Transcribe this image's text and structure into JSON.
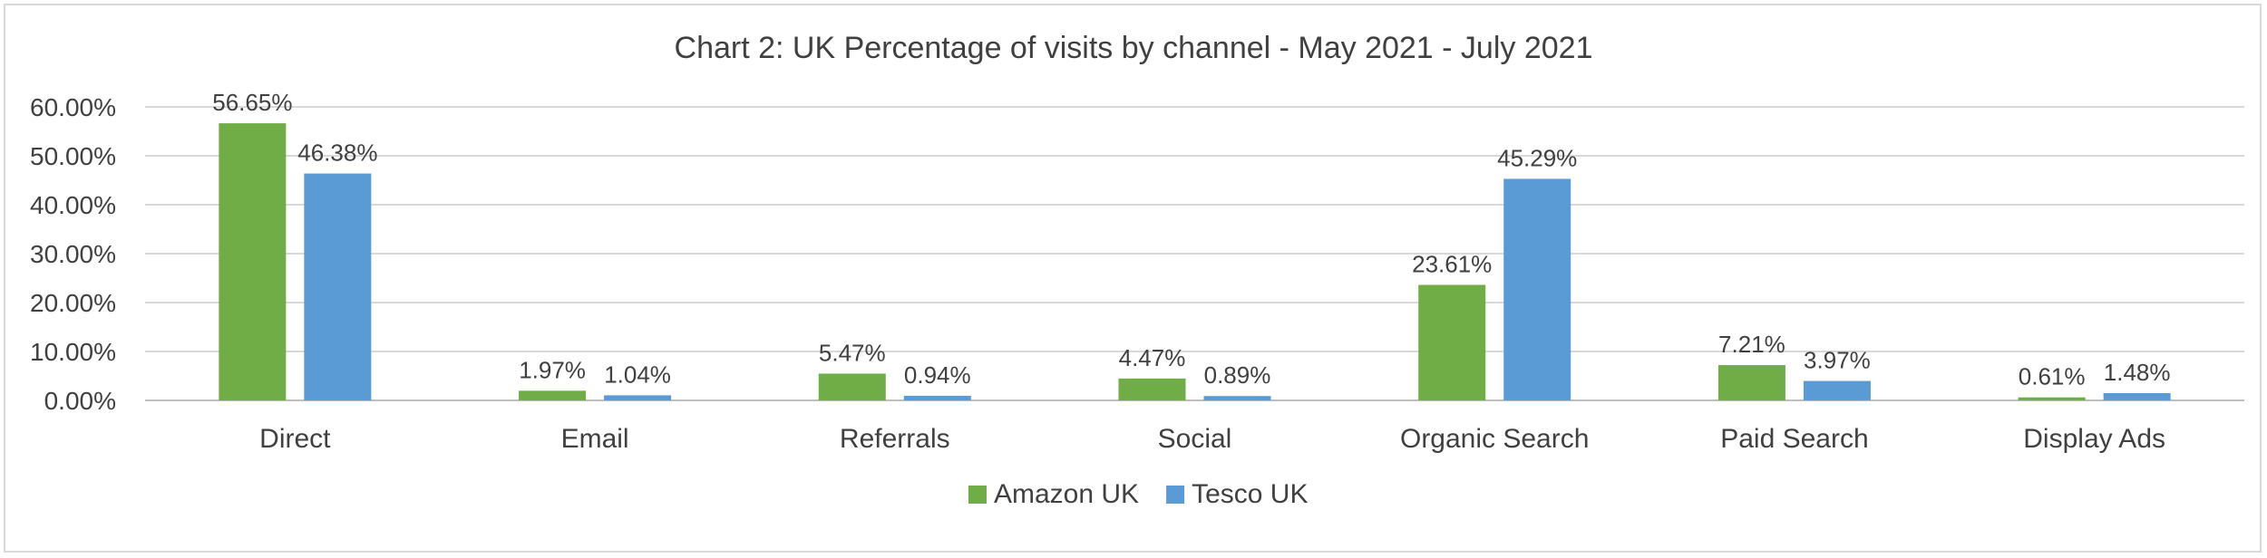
{
  "chart_data": {
    "type": "bar",
    "title": "Chart 2: UK Percentage of visits by channel - May 2021 - July 2021",
    "categories": [
      "Direct",
      "Email",
      "Referrals",
      "Social",
      "Organic Search",
      "Paid Search",
      "Display Ads"
    ],
    "series": [
      {
        "name": "Amazon UK",
        "color": "#70ad47",
        "values": [
          56.65,
          1.97,
          5.47,
          4.47,
          23.61,
          7.21,
          0.61
        ],
        "labels": [
          "56.65%",
          "1.97%",
          "5.47%",
          "4.47%",
          "23.61%",
          "7.21%",
          "0.61%"
        ]
      },
      {
        "name": "Tesco UK",
        "color": "#5b9bd5",
        "values": [
          46.38,
          1.04,
          0.94,
          0.89,
          45.29,
          3.97,
          1.48
        ],
        "labels": [
          "46.38%",
          "1.04%",
          "0.94%",
          "0.89%",
          "45.29%",
          "3.97%",
          "1.48%"
        ]
      }
    ],
    "ylim": [
      0,
      60
    ],
    "yticks": [
      "0.00%",
      "10.00%",
      "20.00%",
      "30.00%",
      "40.00%",
      "50.00%",
      "60.00%"
    ],
    "ytick_values": [
      0,
      10,
      20,
      30,
      40,
      50,
      60
    ],
    "grid": true,
    "legend": "bottom-center"
  }
}
